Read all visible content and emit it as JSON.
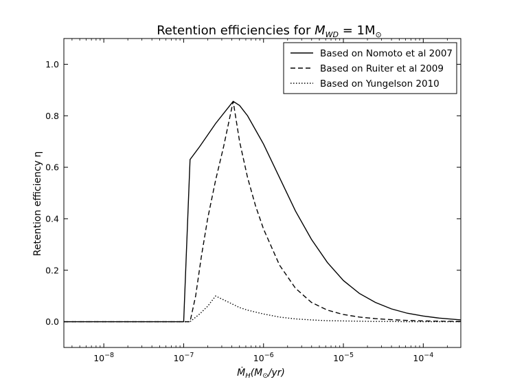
{
  "chart_data": {
    "type": "line",
    "title": "Retention efficiencies for M_WD = 1M_⊙",
    "title_text": "Retention efficiencies for ",
    "title_math": "M",
    "title_math_sub": "WD",
    "title_math_rest": " = 1M",
    "title_math_rest_sub": "⊙",
    "xlabel": "Ṁ_H(M_⊙/yr)",
    "xlabel_parts": {
      "dot_m": "Ṁ",
      "sub_h": "H",
      "open": "(M",
      "sun": "⊙",
      "close": "/yr)"
    },
    "ylabel": "Retention efficiency η",
    "x_scale": "log",
    "xlim_log10": [
      -8.5,
      -3.53
    ],
    "ylim": [
      -0.1,
      1.1
    ],
    "x_ticks": [
      {
        "exp": -8,
        "base": "10",
        "sup": "−8"
      },
      {
        "exp": -7,
        "base": "10",
        "sup": "−7"
      },
      {
        "exp": -6,
        "base": "10",
        "sup": "−6"
      },
      {
        "exp": -5,
        "base": "10",
        "sup": "−5"
      },
      {
        "exp": -4,
        "base": "10",
        "sup": "−4"
      }
    ],
    "y_ticks": [
      "0.0",
      "0.2",
      "0.4",
      "0.6",
      "0.8",
      "1.0"
    ],
    "y_tick_values": [
      0.0,
      0.2,
      0.4,
      0.6,
      0.8,
      1.0
    ],
    "legend_position": "top-right",
    "series": [
      {
        "name": "Based on Nomoto et al 2007",
        "style": "solid",
        "log10_x": [
          -8.5,
          -7.0,
          -6.92,
          -6.8,
          -6.6,
          -6.38,
          -6.3,
          -6.2,
          -6.0,
          -5.8,
          -5.6,
          -5.4,
          -5.2,
          -5.0,
          -4.8,
          -4.6,
          -4.4,
          -4.2,
          -4.0,
          -3.8,
          -3.53
        ],
        "y": [
          0.0,
          0.0,
          0.63,
          0.68,
          0.77,
          0.856,
          0.84,
          0.8,
          0.69,
          0.56,
          0.43,
          0.32,
          0.23,
          0.16,
          0.11,
          0.075,
          0.05,
          0.033,
          0.022,
          0.014,
          0.007
        ]
      },
      {
        "name": "Based on Ruiter et al 2009",
        "style": "dashed",
        "log10_x": [
          -8.5,
          -6.92,
          -6.85,
          -6.78,
          -6.7,
          -6.6,
          -6.5,
          -6.38,
          -6.3,
          -6.2,
          -6.1,
          -6.0,
          -5.8,
          -5.6,
          -5.4,
          -5.2,
          -5.0,
          -4.8,
          -4.6,
          -4.4,
          -4.2,
          -4.0,
          -3.53
        ],
        "y": [
          0.0,
          0.0,
          0.1,
          0.25,
          0.4,
          0.55,
          0.68,
          0.856,
          0.7,
          0.56,
          0.45,
          0.36,
          0.22,
          0.13,
          0.075,
          0.045,
          0.028,
          0.018,
          0.012,
          0.008,
          0.005,
          0.003,
          0.001
        ]
      },
      {
        "name": "Based on Yungelson 2010",
        "style": "dotted",
        "log10_x": [
          -8.5,
          -6.92,
          -6.8,
          -6.7,
          -6.6,
          -6.5,
          -6.4,
          -6.3,
          -6.2,
          -6.0,
          -5.8,
          -5.6,
          -5.4,
          -5.2,
          -5.0,
          -4.8,
          -4.6,
          -4.4,
          -4.2,
          -4.0,
          -3.53
        ],
        "y": [
          0.0,
          0.0,
          0.03,
          0.06,
          0.1,
          0.085,
          0.07,
          0.055,
          0.045,
          0.03,
          0.018,
          0.011,
          0.007,
          0.004,
          0.003,
          0.002,
          0.001,
          0.001,
          0.0,
          0.0,
          0.0
        ]
      }
    ]
  }
}
